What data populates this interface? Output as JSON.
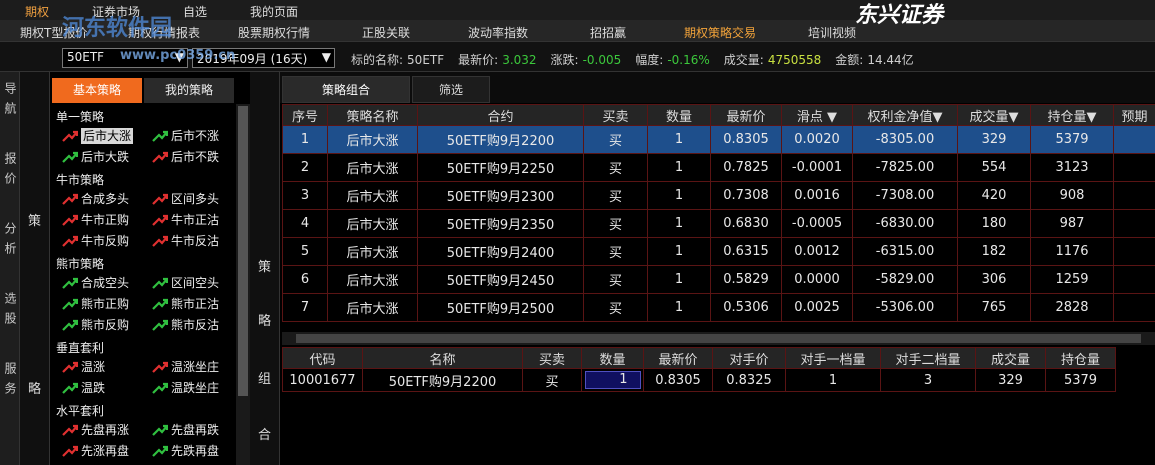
{
  "top_menu": [
    "期权",
    "证券市场",
    "自选",
    "我的页面"
  ],
  "logo": "东兴证券",
  "watermark": [
    "河东软件园",
    "www.pc0359.cn"
  ],
  "sub_menu": {
    "items": [
      "期权T型报价",
      "期权行情报表",
      "股票期权行情",
      "正股关联",
      "波动率指数",
      "招招赢",
      "期权策略交易",
      "培训视频"
    ],
    "active": 6
  },
  "quote_bar": {
    "underlying": "50ETF",
    "expiry": "2019年09月 (16天)",
    "fields": [
      {
        "label": "标的名称:",
        "value": "50ETF"
      },
      {
        "label": "最新价:",
        "value": "3.032"
      },
      {
        "label": "涨跌:",
        "value": "-0.005"
      },
      {
        "label": "幅度:",
        "value": "-0.16%"
      },
      {
        "label": "成交量:",
        "value": "4750558"
      },
      {
        "label": "金额:",
        "value": "14.44亿"
      }
    ]
  },
  "side_nav": [
    "导航",
    "报价",
    "分析",
    "选股",
    "服务"
  ],
  "strategy_label": "策略",
  "strategy_panel": {
    "tabs": [
      "基本策略",
      "我的策略"
    ],
    "active_tab": 0,
    "groups": [
      {
        "title": "单一策略",
        "items": [
          "后市大涨",
          "后市不涨",
          "后市大跌",
          "后市不跌"
        ],
        "selected": 0
      },
      {
        "title": "牛市策略",
        "items": [
          "合成多头",
          "区间多头",
          "牛市正购",
          "牛市正沽",
          "牛市反购",
          "牛市反沽"
        ]
      },
      {
        "title": "熊市策略",
        "items": [
          "合成空头",
          "区间空头",
          "熊市正购",
          "熊市正沽",
          "熊市反购",
          "熊市反沽"
        ]
      },
      {
        "title": "垂直套利",
        "items": [
          "温涨",
          "温涨坐庄",
          "温跌",
          "温跌坐庄"
        ]
      },
      {
        "title": "水平套利",
        "items": [
          "先盘再涨",
          "先盘再跌",
          "先涨再盘",
          "先跌再盘"
        ]
      }
    ]
  },
  "combo_label": "策略组合",
  "main_tabs": {
    "items": [
      "策略组合",
      "筛选"
    ],
    "active": 0
  },
  "strategy_table": {
    "columns": [
      "序号",
      "策略名称",
      "合约",
      "买卖",
      "数量",
      "最新价",
      "滑点 ▼",
      "权利金净值▼",
      "成交量▼",
      "持仓量▼",
      "预期"
    ],
    "selected_row": 0,
    "rows": [
      [
        "1",
        "后市大涨",
        "50ETF购9月2200",
        "买",
        "1",
        "0.8305",
        "0.0020",
        "-8305.00",
        "329",
        "5379"
      ],
      [
        "2",
        "后市大涨",
        "50ETF购9月2250",
        "买",
        "1",
        "0.7825",
        "-0.0001",
        "-7825.00",
        "554",
        "3123"
      ],
      [
        "3",
        "后市大涨",
        "50ETF购9月2300",
        "买",
        "1",
        "0.7308",
        "0.0016",
        "-7308.00",
        "420",
        "908"
      ],
      [
        "4",
        "后市大涨",
        "50ETF购9月2350",
        "买",
        "1",
        "0.6830",
        "-0.0005",
        "-6830.00",
        "180",
        "987"
      ],
      [
        "5",
        "后市大涨",
        "50ETF购9月2400",
        "买",
        "1",
        "0.6315",
        "0.0012",
        "-6315.00",
        "182",
        "1176"
      ],
      [
        "6",
        "后市大涨",
        "50ETF购9月2450",
        "买",
        "1",
        "0.5829",
        "0.0000",
        "-5829.00",
        "306",
        "1259"
      ],
      [
        "7",
        "后市大涨",
        "50ETF购9月2500",
        "买",
        "1",
        "0.5306",
        "0.0025",
        "-5306.00",
        "765",
        "2828"
      ]
    ]
  },
  "order_table": {
    "columns": [
      "代码",
      "名称",
      "买卖",
      "数量",
      "最新价",
      "对手价",
      "对手一档量",
      "对手二档量",
      "成交量",
      "持仓量"
    ],
    "rows": [
      [
        "10001677",
        "50ETF购9月2200",
        "买",
        "1",
        "0.8305",
        "0.8325",
        "1",
        "3",
        "329",
        "5379"
      ]
    ]
  }
}
